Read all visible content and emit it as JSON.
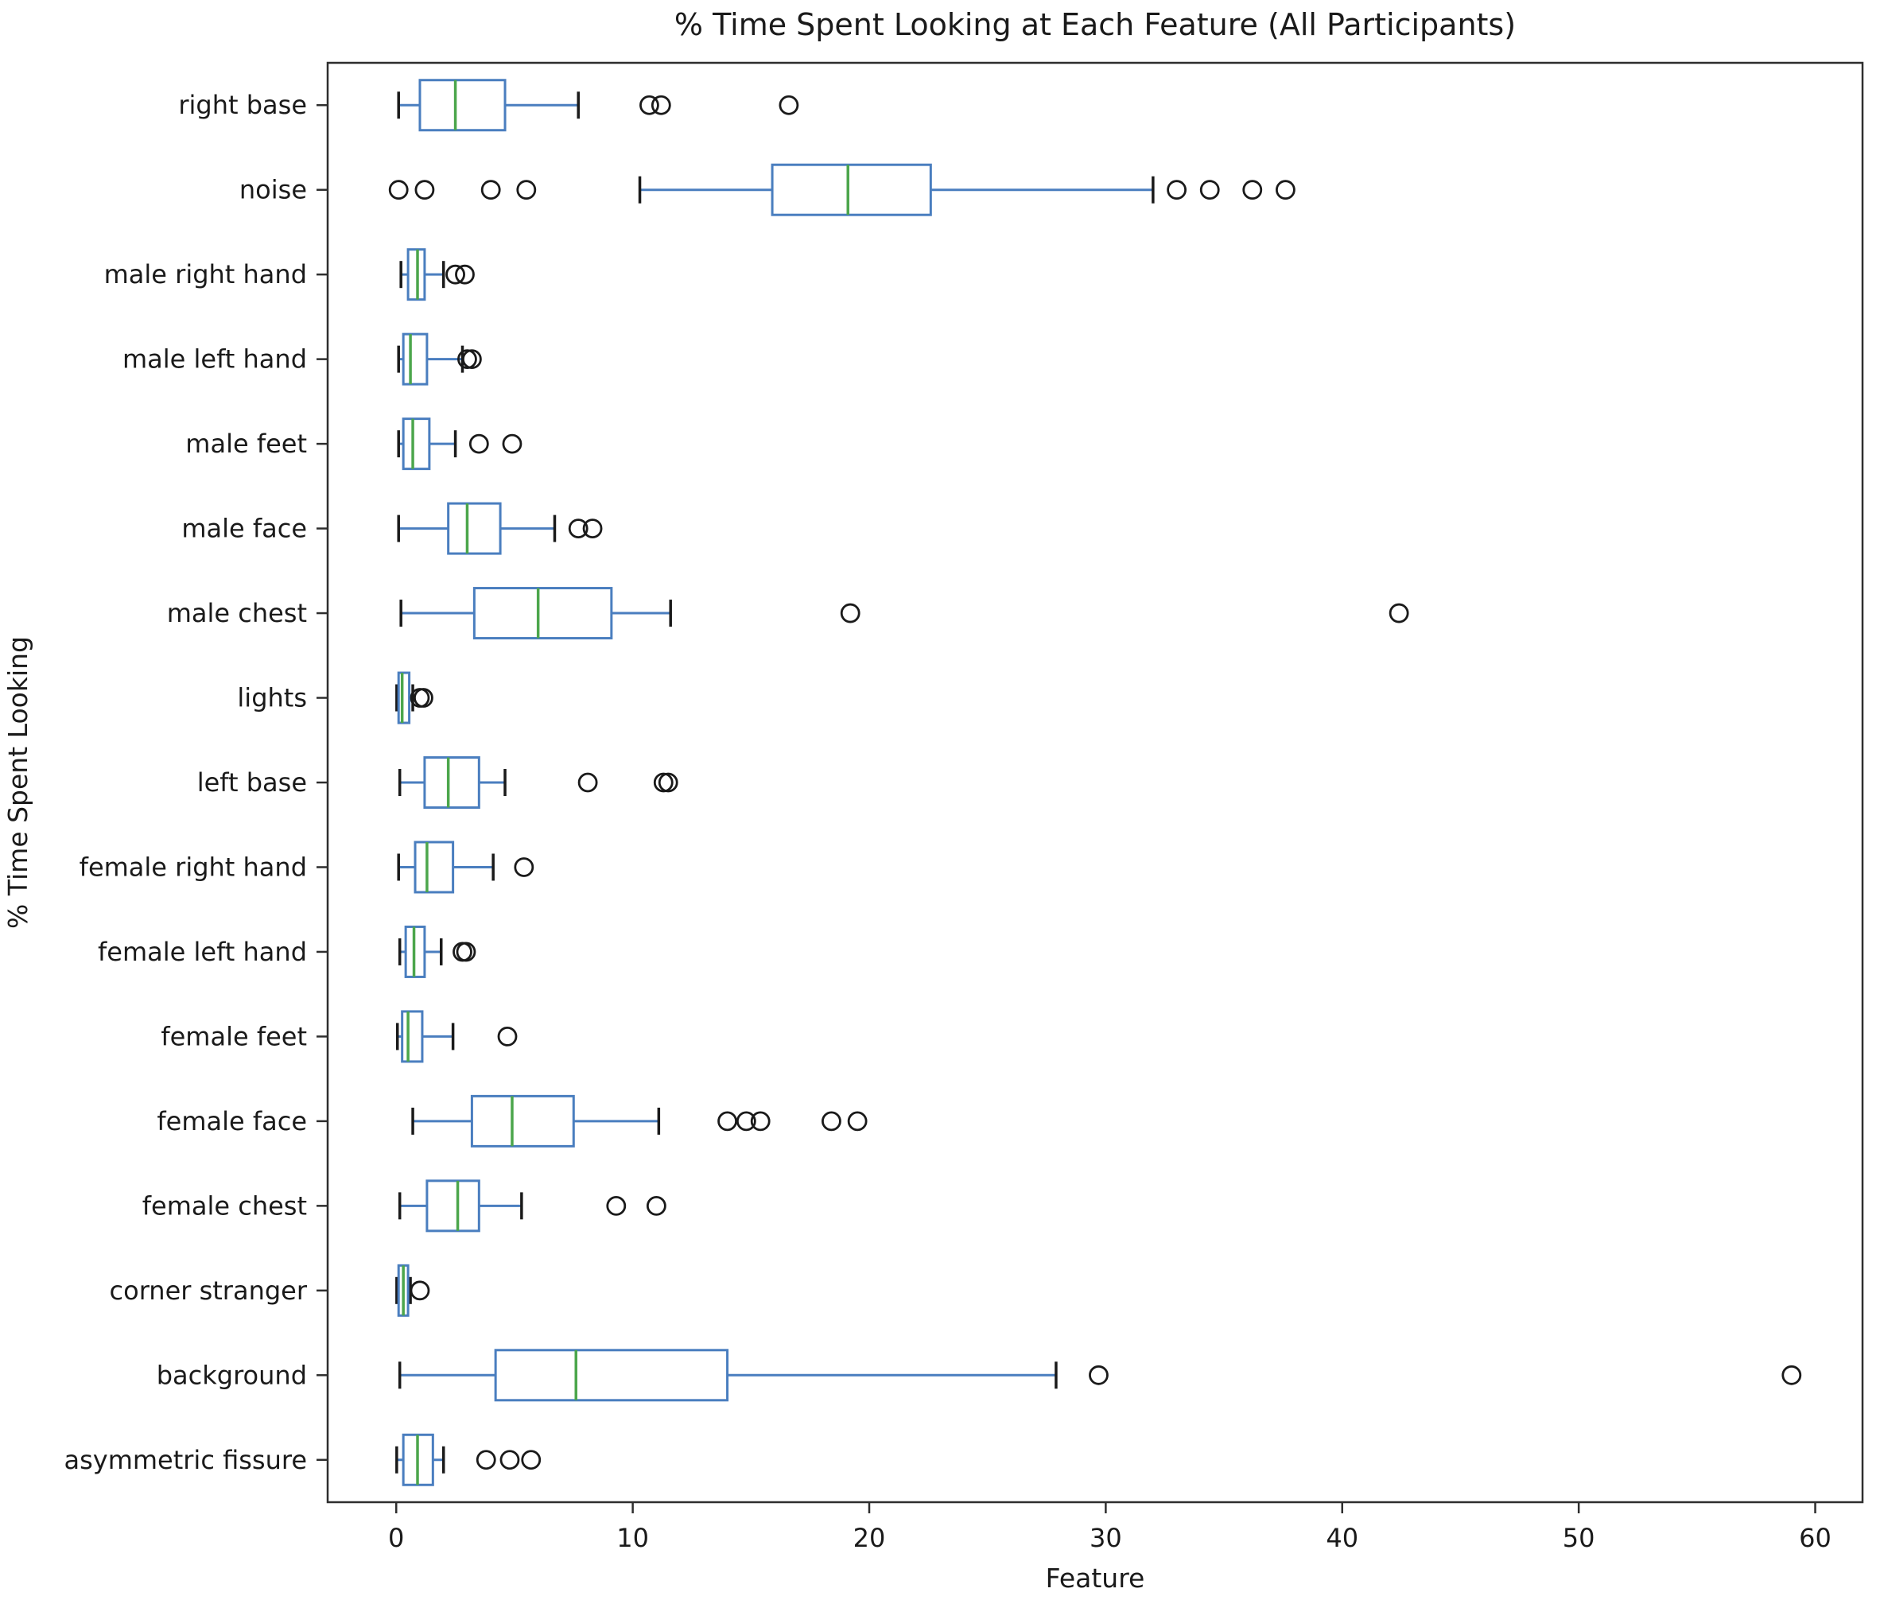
{
  "figure": {
    "background": "#ffffff"
  },
  "chart_data": {
    "type": "boxplot",
    "orientation": "horizontal",
    "title": "% Time Spent Looking at Each Feature (All Participants)",
    "xlabel": "Feature",
    "ylabel": "% Time Spent Looking",
    "xlim": [
      -2.9,
      62
    ],
    "xticks": [
      0,
      10,
      20,
      30,
      40,
      50,
      60
    ],
    "grid": false,
    "legend": "none",
    "colors": {
      "box": "#4a7ebf",
      "whisker": "#4a7ebf",
      "median": "#4ca64c",
      "cap": "#1a1a1a",
      "outlier": "#1a1a1a",
      "spine": "#2e2e2e",
      "background": "#ffffff"
    },
    "rows": [
      {
        "label": "right base",
        "whislo": 0.1,
        "q1": 1.0,
        "med": 2.5,
        "q3": 4.6,
        "whishi": 7.7,
        "fliers": [
          10.7,
          11.2,
          16.6
        ]
      },
      {
        "label": "noise",
        "whislo": 10.3,
        "q1": 15.9,
        "med": 19.1,
        "q3": 22.6,
        "whishi": 32.0,
        "fliers": [
          0.1,
          1.2,
          4.0,
          5.5,
          33.0,
          34.4,
          36.2,
          37.6
        ]
      },
      {
        "label": "male right hand",
        "whislo": 0.2,
        "q1": 0.5,
        "med": 0.9,
        "q3": 1.2,
        "whishi": 2.0,
        "fliers": [
          2.5,
          2.9
        ]
      },
      {
        "label": "male left hand",
        "whislo": 0.1,
        "q1": 0.3,
        "med": 0.6,
        "q3": 1.3,
        "whishi": 2.8,
        "fliers": [
          3.0,
          3.2
        ]
      },
      {
        "label": "male feet",
        "whislo": 0.1,
        "q1": 0.3,
        "med": 0.7,
        "q3": 1.4,
        "whishi": 2.5,
        "fliers": [
          3.5,
          4.9
        ]
      },
      {
        "label": "male face",
        "whislo": 0.1,
        "q1": 2.2,
        "med": 3.0,
        "q3": 4.4,
        "whishi": 6.7,
        "fliers": [
          7.7,
          8.3
        ]
      },
      {
        "label": "male chest",
        "whislo": 0.2,
        "q1": 3.3,
        "med": 6.0,
        "q3": 9.1,
        "whishi": 11.6,
        "fliers": [
          19.2,
          42.4
        ]
      },
      {
        "label": "lights",
        "whislo": 0.02,
        "q1": 0.1,
        "med": 0.25,
        "q3": 0.55,
        "whishi": 0.7,
        "fliers": [
          1.0,
          1.15
        ]
      },
      {
        "label": "left base",
        "whislo": 0.15,
        "q1": 1.2,
        "med": 2.2,
        "q3": 3.5,
        "whishi": 4.6,
        "fliers": [
          8.1,
          11.3,
          11.5
        ]
      },
      {
        "label": "female right hand",
        "whislo": 0.1,
        "q1": 0.8,
        "med": 1.3,
        "q3": 2.4,
        "whishi": 4.1,
        "fliers": [
          5.4
        ]
      },
      {
        "label": "female left hand",
        "whislo": 0.15,
        "q1": 0.4,
        "med": 0.75,
        "q3": 1.2,
        "whishi": 1.9,
        "fliers": [
          2.8,
          2.95
        ]
      },
      {
        "label": "female feet",
        "whislo": 0.05,
        "q1": 0.25,
        "med": 0.5,
        "q3": 1.1,
        "whishi": 2.4,
        "fliers": [
          4.7
        ]
      },
      {
        "label": "female face",
        "whislo": 0.7,
        "q1": 3.2,
        "med": 4.9,
        "q3": 7.5,
        "whishi": 11.1,
        "fliers": [
          14.0,
          14.8,
          15.4,
          18.4,
          19.5
        ]
      },
      {
        "label": "female chest",
        "whislo": 0.15,
        "q1": 1.3,
        "med": 2.6,
        "q3": 3.5,
        "whishi": 5.3,
        "fliers": [
          9.3,
          11.0
        ]
      },
      {
        "label": "corner stranger",
        "whislo": 0.02,
        "q1": 0.1,
        "med": 0.3,
        "q3": 0.5,
        "whishi": 0.6,
        "fliers": [
          1.0
        ]
      },
      {
        "label": "background",
        "whislo": 0.15,
        "q1": 4.2,
        "med": 7.6,
        "q3": 14.0,
        "whishi": 27.9,
        "fliers": [
          29.7,
          59.0
        ]
      },
      {
        "label": "asymmetric fissure",
        "whislo": 0.02,
        "q1": 0.3,
        "med": 0.9,
        "q3": 1.55,
        "whishi": 2.0,
        "fliers": [
          3.8,
          4.8,
          5.7
        ]
      }
    ]
  }
}
